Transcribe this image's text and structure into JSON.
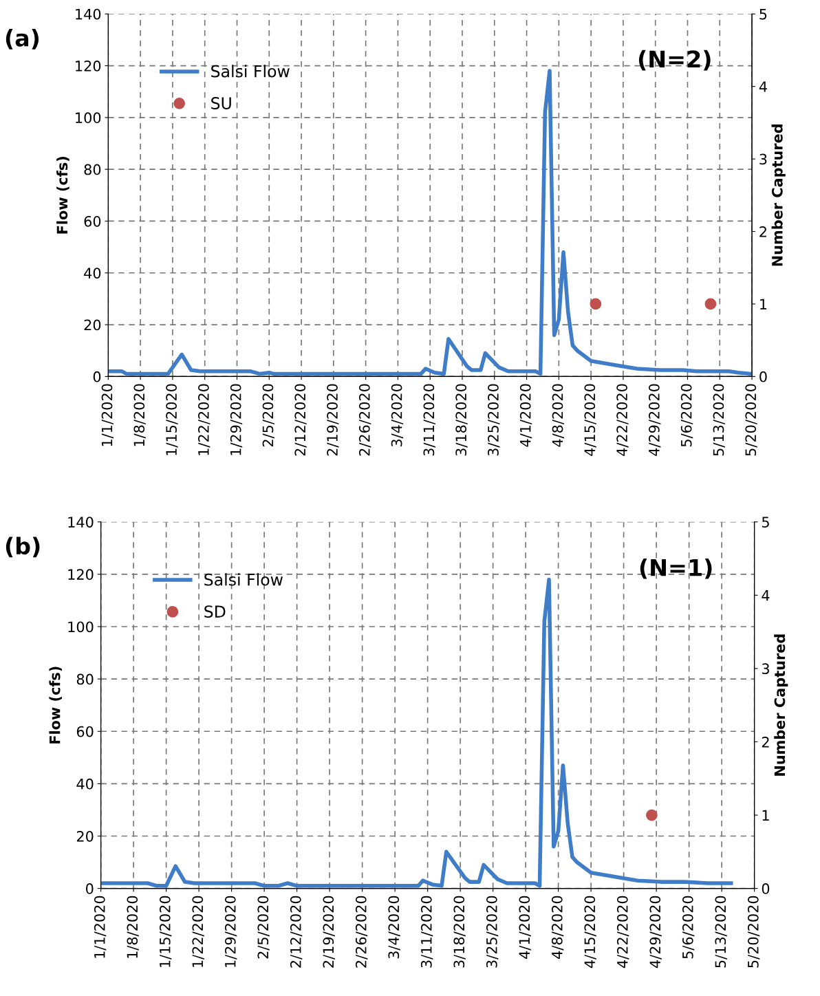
{
  "chart_data": [
    {
      "type": "line",
      "title": "(a)",
      "ylabel": "Flow (cfs)",
      "y2label": "Number Captured",
      "annotations": [
        "(N=2)"
      ],
      "xlim": [
        "2020-01-01",
        "2020-05-20"
      ],
      "ylim": [
        0,
        140
      ],
      "yticks": [
        0,
        20,
        40,
        60,
        80,
        100,
        120,
        140
      ],
      "y2lim": [
        0,
        5
      ],
      "y2ticks": [
        0,
        1,
        2,
        3,
        4,
        5
      ],
      "xticks": [
        {
          "value": "2020-01-01",
          "label": "1/1/2020"
        },
        {
          "value": "2020-01-08",
          "label": "1/8/2020"
        },
        {
          "value": "2020-01-15",
          "label": "1/15/2020"
        },
        {
          "value": "2020-01-22",
          "label": "1/22/2020"
        },
        {
          "value": "2020-01-29",
          "label": "1/29/2020"
        },
        {
          "value": "2020-02-05",
          "label": "2/5/2020"
        },
        {
          "value": "2020-02-12",
          "label": "2/12/2020"
        },
        {
          "value": "2020-02-19",
          "label": "2/19/2020"
        },
        {
          "value": "2020-02-26",
          "label": "2/26/2020"
        },
        {
          "value": "2020-03-04",
          "label": "3/4/2020"
        },
        {
          "value": "2020-03-11",
          "label": "3/11/2020"
        },
        {
          "value": "2020-03-18",
          "label": "3/18/2020"
        },
        {
          "value": "2020-03-25",
          "label": "3/25/2020"
        },
        {
          "value": "2020-04-01",
          "label": "4/1/2020"
        },
        {
          "value": "2020-04-08",
          "label": "4/8/2020"
        },
        {
          "value": "2020-04-15",
          "label": "4/15/2020"
        },
        {
          "value": "2020-04-22",
          "label": "4/22/2020"
        },
        {
          "value": "2020-04-29",
          "label": "4/29/2020"
        },
        {
          "value": "2020-05-06",
          "label": "5/6/2020"
        },
        {
          "value": "2020-05-13",
          "label": "5/13/2020"
        },
        {
          "value": "2020-05-20",
          "label": "5/20/2020"
        }
      ],
      "grid": true,
      "legend": "top left",
      "series": [
        {
          "name": "Salsi Flow",
          "color": "#3f7dc8",
          "x": [
            "2020-01-01",
            "2020-01-04",
            "2020-01-05",
            "2020-01-14",
            "2020-01-17",
            "2020-01-19",
            "2020-01-21",
            "2020-02-01",
            "2020-02-03",
            "2020-02-05",
            "2020-02-06",
            "2020-03-09",
            "2020-03-10",
            "2020-03-12",
            "2020-03-14",
            "2020-03-15",
            "2020-03-19",
            "2020-03-20",
            "2020-03-22",
            "2020-03-23",
            "2020-03-26",
            "2020-03-28",
            "2020-04-03",
            "2020-04-04",
            "2020-04-05",
            "2020-04-06",
            "2020-04-07",
            "2020-04-08",
            "2020-04-09",
            "2020-04-10",
            "2020-04-11",
            "2020-04-12",
            "2020-04-15",
            "2020-04-20",
            "2020-04-25",
            "2020-04-30",
            "2020-05-05",
            "2020-05-08",
            "2020-05-15",
            "2020-05-17",
            "2020-05-20"
          ],
          "values": [
            2,
            2,
            1,
            1,
            8.5,
            2.5,
            2,
            2,
            1,
            1.5,
            1,
            1,
            3,
            1.5,
            1,
            14.5,
            4,
            2.5,
            2.5,
            9,
            3.5,
            2,
            2,
            1,
            102,
            118,
            16,
            22,
            48,
            25,
            12,
            10,
            6,
            4.5,
            3,
            2.5,
            2.5,
            2,
            2,
            1.5,
            1
          ]
        },
        {
          "name": "SU",
          "type": "scatter",
          "axis": "y2",
          "color": "#c0504d",
          "marker": "circle",
          "x": [
            "2020-04-16",
            "2020-05-11"
          ],
          "values": [
            1,
            1
          ]
        }
      ]
    },
    {
      "type": "line",
      "title": "(b)",
      "ylabel": "Flow (cfs)",
      "y2label": "Number Captured",
      "annotations": [
        "(N=1)"
      ],
      "xlim": [
        "2020-01-01",
        "2020-05-20"
      ],
      "ylim": [
        0,
        140
      ],
      "yticks": [
        0,
        20,
        40,
        60,
        80,
        100,
        120,
        140
      ],
      "y2lim": [
        0,
        5
      ],
      "y2ticks": [
        0,
        1,
        2,
        3,
        4,
        5
      ],
      "xticks": [
        {
          "value": "2020-01-01",
          "label": "1/1/2020"
        },
        {
          "value": "2020-01-08",
          "label": "1/8/2020"
        },
        {
          "value": "2020-01-15",
          "label": "1/15/2020"
        },
        {
          "value": "2020-01-22",
          "label": "1/22/2020"
        },
        {
          "value": "2020-01-29",
          "label": "1/29/2020"
        },
        {
          "value": "2020-02-05",
          "label": "2/5/2020"
        },
        {
          "value": "2020-02-12",
          "label": "2/12/2020"
        },
        {
          "value": "2020-02-19",
          "label": "2/19/2020"
        },
        {
          "value": "2020-02-26",
          "label": "2/26/2020"
        },
        {
          "value": "2020-03-04",
          "label": "3/4/2020"
        },
        {
          "value": "2020-03-11",
          "label": "3/11/2020"
        },
        {
          "value": "2020-03-18",
          "label": "3/18/2020"
        },
        {
          "value": "2020-03-25",
          "label": "3/25/2020"
        },
        {
          "value": "2020-04-01",
          "label": "4/1/2020"
        },
        {
          "value": "2020-04-08",
          "label": "4/8/2020"
        },
        {
          "value": "2020-04-15",
          "label": "4/15/2020"
        },
        {
          "value": "2020-04-22",
          "label": "4/22/2020"
        },
        {
          "value": "2020-04-29",
          "label": "4/29/2020"
        },
        {
          "value": "2020-05-06",
          "label": "5/6/2020"
        },
        {
          "value": "2020-05-13",
          "label": "5/13/2020"
        },
        {
          "value": "2020-05-20",
          "label": "5/20/2020"
        }
      ],
      "grid": true,
      "legend": "top left",
      "series": [
        {
          "name": "Salsi Flow",
          "color": "#3f7dc8",
          "x": [
            "2020-01-01",
            "2020-01-11",
            "2020-01-13",
            "2020-01-15",
            "2020-01-17",
            "2020-01-19",
            "2020-01-21",
            "2020-02-03",
            "2020-02-05",
            "2020-02-08",
            "2020-02-10",
            "2020-02-12",
            "2020-03-09",
            "2020-03-10",
            "2020-03-12",
            "2020-03-14",
            "2020-03-15",
            "2020-03-19",
            "2020-03-20",
            "2020-03-22",
            "2020-03-23",
            "2020-03-26",
            "2020-03-28",
            "2020-04-03",
            "2020-04-04",
            "2020-04-05",
            "2020-04-06",
            "2020-04-07",
            "2020-04-08",
            "2020-04-09",
            "2020-04-10",
            "2020-04-11",
            "2020-04-12",
            "2020-04-15",
            "2020-04-20",
            "2020-04-25",
            "2020-04-30",
            "2020-05-05",
            "2020-05-10",
            "2020-05-15"
          ],
          "values": [
            2,
            2,
            1,
            1,
            8.5,
            2.5,
            2,
            2,
            1,
            1,
            2,
            1,
            1,
            3,
            1.5,
            1,
            14,
            4,
            2.5,
            2.5,
            9,
            3.5,
            2,
            2,
            1,
            102,
            118,
            16,
            22,
            47,
            25,
            12,
            10,
            6,
            4.5,
            3,
            2.5,
            2.5,
            2,
            2
          ]
        },
        {
          "name": "SD",
          "type": "scatter",
          "axis": "y2",
          "color": "#c0504d",
          "marker": "circle",
          "x": [
            "2020-04-28"
          ],
          "values": [
            1
          ]
        }
      ]
    }
  ]
}
